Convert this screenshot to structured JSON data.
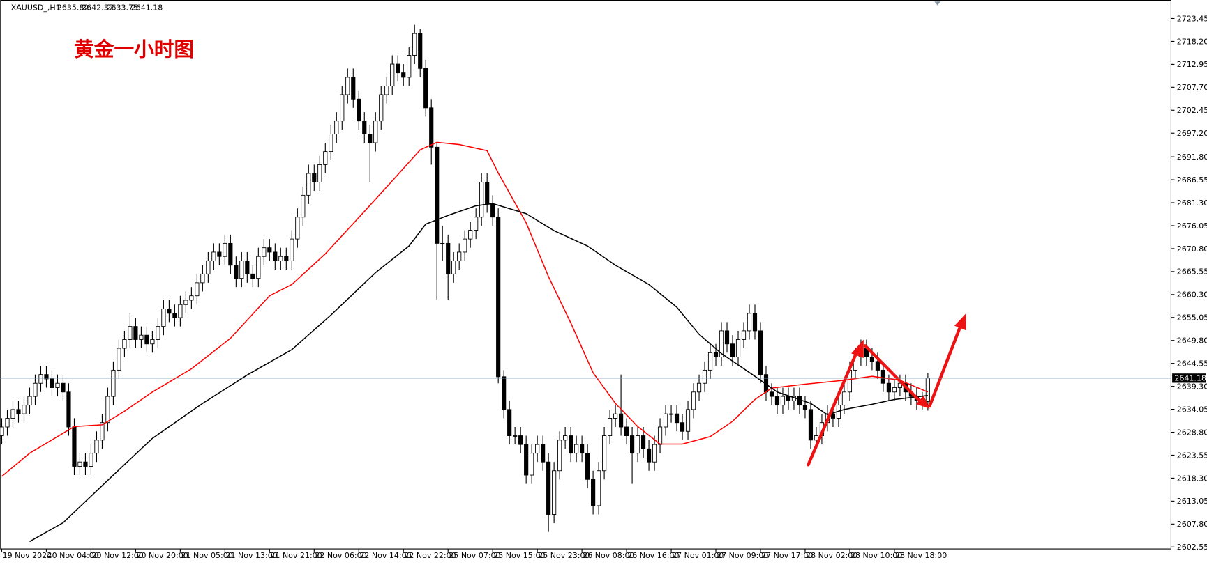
{
  "chart_data": {
    "type": "candlestick",
    "symbol": "XAUUSD_,H1",
    "title": "黄金一小时图",
    "candles": {
      "open": [
        2628,
        2630,
        2632,
        2634,
        2633,
        2635,
        2637,
        2640,
        2642,
        2641,
        2639,
        2640,
        2638,
        2630,
        2621,
        2622,
        2621,
        2624,
        2627,
        2631,
        2637,
        2643,
        2648,
        2650,
        2653,
        2650,
        2651,
        2649,
        2650,
        2653,
        2657,
        2656,
        2655,
        2658,
        2659,
        2660,
        2663,
        2665,
        2668,
        2670,
        2669,
        2672,
        2667,
        2664,
        2668,
        2665,
        2664,
        2669,
        2671,
        2670,
        2668,
        2669,
        2668,
        2673,
        2678,
        2683,
        2688,
        2686,
        2690,
        2693,
        2697,
        2700,
        2706,
        2710,
        2705,
        2700,
        2697,
        2695,
        2700,
        2706,
        2708,
        2713,
        2711,
        2710,
        2715,
        2720,
        2712,
        2703,
        2694,
        2672,
        2672,
        2665,
        2668,
        2670,
        2673,
        2675,
        2678,
        2686,
        2681,
        2678,
        2641.5,
        2634,
        2628,
        2628,
        2626,
        2619,
        2624,
        2626,
        2622,
        2610,
        2620,
        2627,
        2628,
        2624,
        2626,
        2624,
        2618,
        2612,
        2620,
        2628,
        2632,
        2633,
        2630,
        2628,
        2624,
        2628,
        2625,
        2622,
        2626,
        2630,
        2633,
        2633,
        2631,
        2629,
        2634,
        2638,
        2640,
        2643,
        2647,
        2646,
        2652,
        2649,
        2646,
        2650,
        2652,
        2656,
        2652,
        2642,
        2638,
        2637,
        2635,
        2637,
        2636,
        2637,
        2635,
        2634,
        2627,
        2628,
        2631,
        2633,
        2632,
        2635,
        2638,
        2643,
        2646,
        2648,
        2646,
        2645,
        2643,
        2640,
        2638,
        2639,
        2640,
        2638,
        2637,
        2636,
        2635.82
      ],
      "high": [
        2632,
        2634,
        2636,
        2636,
        2637,
        2639,
        2642,
        2644,
        2644,
        2643,
        2642,
        2642,
        2640,
        2632,
        2624,
        2624,
        2626,
        2629,
        2633,
        2639,
        2645,
        2650,
        2652,
        2656,
        2655,
        2653,
        2653,
        2652,
        2655,
        2659,
        2659,
        2658,
        2660,
        2661,
        2662,
        2665,
        2667,
        2670,
        2672,
        2672,
        2674,
        2674,
        2669,
        2670,
        2670,
        2667,
        2671,
        2673,
        2673,
        2672,
        2671,
        2671,
        2675,
        2680,
        2685,
        2690,
        2690,
        2692,
        2695,
        2699,
        2702,
        2708,
        2712,
        2712,
        2707,
        2702,
        2699,
        2702,
        2708,
        2710,
        2715,
        2715,
        2713,
        2717,
        2722,
        2721,
        2714,
        2705,
        2695,
        2676,
        2674,
        2670,
        2672,
        2675,
        2677,
        2680,
        2688,
        2688,
        2683,
        2680,
        2643,
        2636,
        2630,
        2630,
        2628,
        2626,
        2628,
        2628,
        2624,
        2622,
        2629,
        2630,
        2630,
        2628,
        2628,
        2626,
        2620,
        2622,
        2630,
        2634,
        2635,
        2642,
        2632,
        2630,
        2630,
        2630,
        2627,
        2628,
        2632,
        2635,
        2635,
        2635,
        2633,
        2636,
        2640,
        2642,
        2645,
        2649,
        2649,
        2654,
        2654,
        2651,
        2652,
        2654,
        2658,
        2658,
        2654,
        2644,
        2640,
        2639,
        2639,
        2639,
        2639,
        2639,
        2637,
        2636,
        2630,
        2633,
        2635,
        2635,
        2637,
        2640,
        2645,
        2648,
        2650,
        2650,
        2648,
        2647,
        2645,
        2642,
        2641,
        2642,
        2642,
        2640,
        2639,
        2638,
        2642.37
      ],
      "low": [
        2626,
        2628,
        2630,
        2631,
        2631,
        2633,
        2635,
        2638,
        2639,
        2637,
        2637,
        2636,
        2628,
        2619,
        2619,
        2619,
        2619,
        2622,
        2625,
        2629,
        2635,
        2641,
        2646,
        2648,
        2648,
        2648,
        2647,
        2647,
        2648,
        2651,
        2654,
        2653,
        2653,
        2656,
        2657,
        2658,
        2661,
        2663,
        2666,
        2667,
        2667,
        2665,
        2662,
        2662,
        2663,
        2662,
        2662,
        2667,
        2668,
        2666,
        2666,
        2666,
        2666,
        2671,
        2676,
        2681,
        2684,
        2684,
        2688,
        2691,
        2695,
        2698,
        2704,
        2703,
        2698,
        2695,
        2686,
        2693,
        2698,
        2704,
        2706,
        2709,
        2708,
        2708,
        2713,
        2710,
        2701,
        2690,
        2659,
        2668,
        2659,
        2663,
        2666,
        2668,
        2671,
        2673,
        2676,
        2679,
        2676,
        2640,
        2632,
        2626,
        2626,
        2624,
        2617,
        2617,
        2622,
        2620,
        2606,
        2608,
        2618,
        2625,
        2622,
        2622,
        2622,
        2616,
        2610,
        2610,
        2618,
        2626,
        2630,
        2628,
        2626,
        2617,
        2622,
        2623,
        2620,
        2620,
        2624,
        2628,
        2631,
        2629,
        2627,
        2627,
        2632,
        2636,
        2638,
        2641,
        2644,
        2644,
        2647,
        2644,
        2644,
        2648,
        2650,
        2650,
        2640,
        2636,
        2635,
        2633,
        2633,
        2634,
        2634,
        2633,
        2632,
        2625,
        2625,
        2626,
        2629,
        2630,
        2630,
        2633,
        2636,
        2641,
        2644,
        2644,
        2643,
        2641,
        2638,
        2636,
        2636,
        2637,
        2636,
        2635,
        2634,
        2634,
        2633.75
      ],
      "close": [
        2630,
        2632,
        2634,
        2633,
        2635,
        2637,
        2640,
        2642,
        2641,
        2639,
        2640,
        2638,
        2630,
        2621,
        2622,
        2621,
        2624,
        2627,
        2631,
        2637,
        2643,
        2648,
        2650,
        2653,
        2650,
        2651,
        2649,
        2650,
        2653,
        2657,
        2656,
        2655,
        2658,
        2659,
        2660,
        2663,
        2665,
        2668,
        2670,
        2669,
        2672,
        2667,
        2664,
        2668,
        2665,
        2664,
        2669,
        2671,
        2670,
        2668,
        2669,
        2668,
        2673,
        2678,
        2683,
        2688,
        2686,
        2690,
        2693,
        2697,
        2700,
        2706,
        2710,
        2705,
        2700,
        2697,
        2695,
        2700,
        2706,
        2708,
        2713,
        2711,
        2710,
        2715,
        2720,
        2712,
        2703,
        2694,
        2672,
        2672,
        2665,
        2668,
        2670,
        2673,
        2675,
        2678,
        2686,
        2681,
        2678,
        2641.5,
        2634,
        2628,
        2628,
        2626,
        2619,
        2624,
        2626,
        2622,
        2610,
        2620,
        2627,
        2628,
        2624,
        2626,
        2624,
        2618,
        2612,
        2620,
        2628,
        2632,
        2633,
        2630,
        2628,
        2624,
        2628,
        2625,
        2622,
        2626,
        2630,
        2633,
        2633,
        2631,
        2629,
        2634,
        2638,
        2640,
        2643,
        2647,
        2646,
        2652,
        2649,
        2646,
        2650,
        2652,
        2656,
        2652,
        2642,
        2638,
        2637,
        2635,
        2637,
        2636,
        2637,
        2635,
        2634,
        2627,
        2628,
        2631,
        2633,
        2632,
        2635,
        2638,
        2643,
        2646,
        2648,
        2646,
        2645,
        2643,
        2640,
        2638,
        2639,
        2640,
        2638,
        2637,
        2636,
        2635.82,
        2641.18
      ]
    },
    "moving_averages": [
      {
        "color": "#ff0000",
        "x": [
          0,
          5,
          13,
          18,
          22,
          27,
          34,
          41,
          48,
          52,
          58,
          65,
          70,
          75,
          78,
          82,
          87,
          89,
          94,
          98,
          102,
          106,
          110,
          114,
          118,
          122,
          127,
          131,
          135,
          138,
          144,
          151,
          156,
          161,
          166
        ],
        "values": [
          2618.7,
          2624.0,
          2630.1,
          2630.5,
          2633.6,
          2638.0,
          2643.3,
          2650.3,
          2660.0,
          2662.6,
          2669.6,
          2679.3,
          2686.3,
          2693.4,
          2695.1,
          2694.6,
          2693.2,
          2688.1,
          2676.7,
          2664.4,
          2653.8,
          2642.4,
          2635.4,
          2630.1,
          2626.1,
          2626.1,
          2627.8,
          2631.3,
          2636.3,
          2638.9,
          2639.8,
          2640.7,
          2641.6,
          2640.7,
          2638.0
        ]
      },
      {
        "color": "#000000",
        "x": [
          5,
          11,
          19,
          27,
          36,
          44,
          52,
          59,
          67,
          73,
          76,
          80,
          85,
          88,
          94,
          99,
          105,
          110,
          116,
          121,
          125,
          129,
          135,
          139,
          145,
          148,
          151,
          156,
          160,
          166
        ],
        "values": [
          2603.8,
          2608.1,
          2617.8,
          2627.4,
          2635.4,
          2641.9,
          2647.7,
          2655.6,
          2665.3,
          2671.4,
          2676.4,
          2678.4,
          2680.6,
          2681.1,
          2678.8,
          2674.9,
          2671.4,
          2667.0,
          2662.6,
          2657.4,
          2651.2,
          2646.8,
          2641.6,
          2638.0,
          2635.4,
          2632.8,
          2634.0,
          2635.2,
          2636.3,
          2637.2
        ]
      }
    ],
    "up_color": "#ffffff",
    "down_color": "#000000",
    "price_line_color": "#8496a8",
    "ylim": [
      2602.19,
      2727.67
    ],
    "yticks": [
      2723.45,
      {
        "value": 2718.2,
        "label": "2718.20"
      },
      2712.95,
      {
        "value": 2707.7,
        "label": "2707.70"
      },
      2702.45,
      {
        "value": 2697.2,
        "label": "2697.20"
      },
      {
        "value": 2691.8,
        "label": "2691.80"
      },
      2686.55,
      {
        "value": 2681.3,
        "label": "2681.30"
      },
      2676.05,
      {
        "value": 2670.8,
        "label": "2670.80"
      },
      2665.55,
      {
        "value": 2660.3,
        "label": "2660.30"
      },
      2655.05,
      {
        "value": 2649.8,
        "label": "2649.80"
      },
      2644.55,
      {
        "value": 2639.3,
        "label": "2639.30"
      },
      2634.05,
      {
        "value": 2628.8,
        "label": "2628.80"
      },
      2623.55,
      {
        "value": 2618.3,
        "label": "2618.30"
      },
      2613.05,
      {
        "value": 2607.8,
        "label": "2607.80"
      },
      2602.55
    ],
    "xlim": [
      -0.28,
      209.66
    ],
    "xticks": [
      {
        "value": 0,
        "label": "19 Nov 2024"
      },
      {
        "value": 8,
        "label": "20 Nov 04:00"
      },
      {
        "value": 16,
        "label": "20 Nov 12:00"
      },
      {
        "value": 24,
        "label": "20 Nov 20:00"
      },
      {
        "value": 32,
        "label": "21 Nov 05:00"
      },
      {
        "value": 40,
        "label": "21 Nov 13:00"
      },
      {
        "value": 48,
        "label": "21 Nov 21:00"
      },
      {
        "value": 56,
        "label": "22 Nov 06:00"
      },
      {
        "value": 64,
        "label": "22 Nov 14:00"
      },
      {
        "value": 72,
        "label": "22 Nov 22:00"
      },
      {
        "value": 80,
        "label": "25 Nov 07:00"
      },
      {
        "value": 88,
        "label": "25 Nov 15:00"
      },
      {
        "value": 96,
        "label": "25 Nov 23:00"
      },
      {
        "value": 104,
        "label": "26 Nov 08:00"
      },
      {
        "value": 112,
        "label": "26 Nov 16:00"
      },
      {
        "value": 120,
        "label": "27 Nov 01:00"
      },
      {
        "value": 128,
        "label": "27 Nov 09:00"
      },
      {
        "value": 136,
        "label": "27 Nov 17:00"
      },
      {
        "value": 144,
        "label": "28 Nov 02:00"
      },
      {
        "value": 152,
        "label": "28 Nov 10:00"
      },
      {
        "value": 160,
        "label": "28 Nov 18:00"
      }
    ]
  }
}
